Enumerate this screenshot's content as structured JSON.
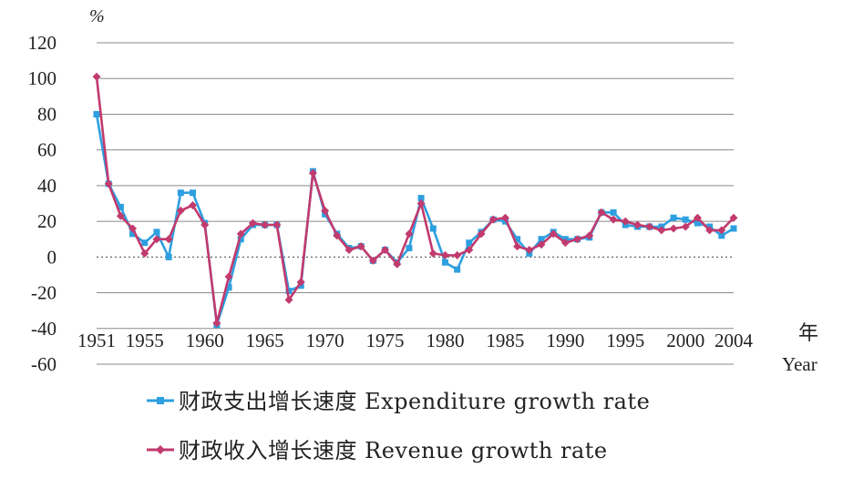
{
  "chart_data": {
    "type": "line",
    "y_unit": "%",
    "x_name_cn": "年",
    "x_name_en": "Year",
    "ylim": [
      -60,
      120
    ],
    "y_ticks": [
      "120",
      "100",
      "80",
      "60",
      "40",
      "20",
      "0",
      "-20",
      "-40",
      "-60"
    ],
    "y_tick_values": [
      120,
      100,
      80,
      60,
      40,
      20,
      0,
      -20,
      -40,
      -60
    ],
    "xlim": [
      1951,
      2004
    ],
    "x_ticks": [
      "1951",
      "1955",
      "1960",
      "1965",
      "1970",
      "1975",
      "1980",
      "1985",
      "1990",
      "1995",
      "2000",
      "2004"
    ],
    "x_tick_values": [
      1951,
      1955,
      1960,
      1965,
      1970,
      1975,
      1980,
      1985,
      1990,
      1995,
      2000,
      2004
    ],
    "grid": "horizontal",
    "legend_position": "bottom",
    "x": [
      1951,
      1952,
      1953,
      1954,
      1955,
      1956,
      1957,
      1958,
      1959,
      1960,
      1961,
      1962,
      1963,
      1964,
      1965,
      1966,
      1967,
      1968,
      1969,
      1970,
      1971,
      1972,
      1973,
      1974,
      1975,
      1976,
      1977,
      1978,
      1979,
      1980,
      1981,
      1982,
      1983,
      1984,
      1985,
      1986,
      1987,
      1988,
      1989,
      1990,
      1991,
      1992,
      1993,
      1994,
      1995,
      1996,
      1997,
      1998,
      1999,
      2000,
      2001,
      2002,
      2003,
      2004
    ],
    "series": [
      {
        "name": "财政支出增长速度 Expenditure growth rate",
        "color": "#2e9fe0",
        "marker": "square",
        "values": [
          80,
          41,
          28,
          13,
          8,
          14,
          0,
          36,
          36,
          19,
          -38,
          -17,
          10,
          18,
          18,
          18,
          -19,
          -16,
          48,
          24,
          13,
          5,
          6,
          -2,
          4,
          -3,
          5,
          33,
          16,
          -3,
          -7,
          8,
          14,
          21,
          20,
          10,
          2,
          10,
          14,
          10,
          10,
          11,
          25,
          25,
          18,
          17,
          17,
          17,
          22,
          21,
          19,
          17,
          12,
          16
        ]
      },
      {
        "name": "财政收入增长速度 Revenue growth rate",
        "color": "#c23a6e",
        "marker": "diamond",
        "values": [
          101,
          41,
          23,
          16,
          2,
          10,
          10,
          26,
          29,
          18,
          -37,
          -11,
          13,
          19,
          18,
          18,
          -24,
          -14,
          47,
          26,
          12,
          4,
          6,
          -2,
          4,
          -4,
          13,
          30,
          2,
          1,
          1,
          4,
          13,
          21,
          22,
          6,
          4,
          7,
          13,
          8,
          10,
          12,
          25,
          21,
          20,
          18,
          17,
          15,
          16,
          17,
          22,
          15,
          15,
          22
        ]
      }
    ]
  }
}
